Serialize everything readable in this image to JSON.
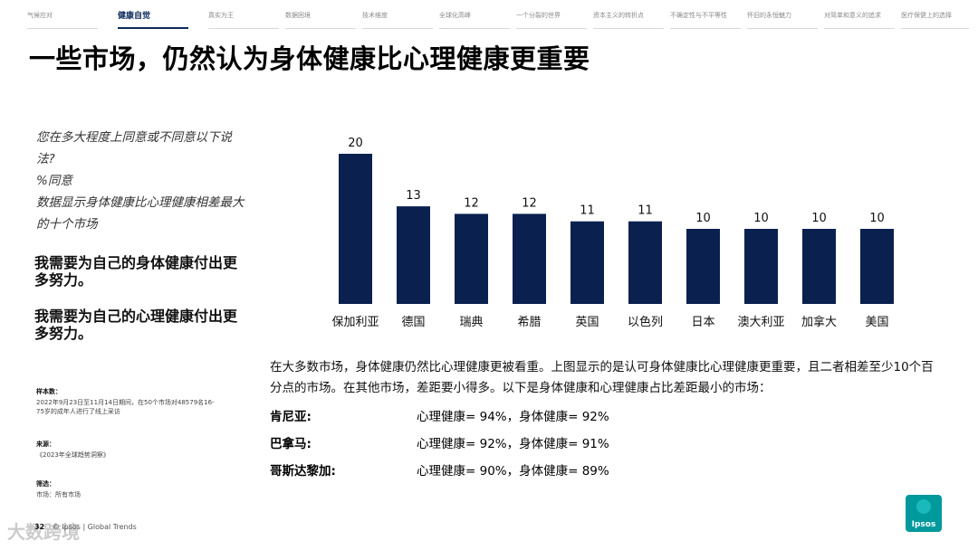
{
  "nav": [
    "气候应对",
    "健康自觉",
    "真实为王",
    "数据困境",
    "技术维度",
    "全球化高峰",
    "一个分裂的世界",
    "资本主义的转折点",
    "不确定性与不平等性",
    "怀旧的永恒魅力",
    "对简单和意义的追求",
    "医疗保健上的选择"
  ],
  "title": "一些市场，仍然认为身体健康比心理健康更重要",
  "question": {
    "line1": "您在多大程度上同意或不同意以下说法?",
    "line2": "%同意",
    "line3": "数据显示身体健康比心理健康相差最大的十个市场"
  },
  "statements": {
    "physical": "我需要为自己的身体健康付出更多努力。",
    "mental": "我需要为自己的心理健康付出更多努力。"
  },
  "meta": {
    "sample_label": "样本数：",
    "sample_text": "2022年9月23日至11月14日期间，在50个市场对48579名16-75岁的成年人进行了线上采访",
    "source_label": "来源：",
    "source_text": "《2023年全球趋势洞察》",
    "filter_label": "筛选：",
    "filter_text": "市场：所有市场"
  },
  "footer": {
    "page": "32",
    "text": "© Ipsos | Global Trends"
  },
  "watermark": "大数跨境",
  "chart_data": {
    "type": "bar",
    "categories": [
      "保加利亚",
      "德国",
      "瑞典",
      "希腊",
      "英国",
      "以色列",
      "日本",
      "澳大利亚",
      "加拿大",
      "美国"
    ],
    "values": [
      20,
      13,
      12,
      12,
      11,
      11,
      10,
      10,
      10,
      10
    ],
    "title": "",
    "xlabel": "",
    "ylabel": "",
    "color": "#0a2150"
  },
  "paragraph": "在大多数市场，身体健康仍然比心理健康更被看重。上图显示的是认可身体健康比心理健康更重要，且二者相差至少10个百分点的市场。在其他市场，差距要小得多。以下是身体健康和心理健康占比差距最小的市场：",
  "comparisons": [
    {
      "country": "肯尼亚:",
      "values": "心理健康= 94%，身体健康= 92%"
    },
    {
      "country": "巴拿马:",
      "values": "心理健康= 92%，身体健康= 91%"
    },
    {
      "country": "哥斯达黎加:",
      "values": "心理健康= 90%，身体健康= 89%"
    }
  ],
  "logo": {
    "text": "Ipsos",
    "color": "#00999c"
  }
}
